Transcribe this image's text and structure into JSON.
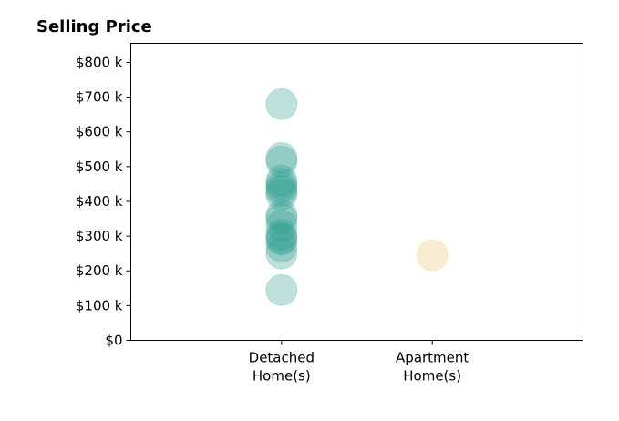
{
  "chart_data": {
    "type": "scatter",
    "title": "Selling Price",
    "xlabel": "",
    "ylabel": "",
    "categories": [
      "Detached\nHome(s)",
      "Apartment\nHome(s)"
    ],
    "yticks": [
      {
        "value": 0,
        "label": "$0"
      },
      {
        "value": 100,
        "label": "$100 k"
      },
      {
        "value": 200,
        "label": "$200 k"
      },
      {
        "value": 300,
        "label": "$300 k"
      },
      {
        "value": 400,
        "label": "$400 k"
      },
      {
        "value": 500,
        "label": "$500 k"
      },
      {
        "value": 600,
        "label": "$600 k"
      },
      {
        "value": 700,
        "label": "$700 k"
      },
      {
        "value": 800,
        "label": "$800 k"
      }
    ],
    "ylim": [
      0,
      855
    ],
    "xlim": [
      -1,
      2
    ],
    "grid": false,
    "series": [
      {
        "category_index": 0,
        "color": "#2a9d8f",
        "opacity": 0.3,
        "values": [
          145,
          250,
          270,
          290,
          295,
          305,
          330,
          350,
          360,
          420,
          430,
          440,
          450,
          460,
          515,
          525,
          680
        ]
      },
      {
        "category_index": 1,
        "color": "#e9c46a",
        "opacity": 0.3,
        "values": [
          245
        ]
      }
    ]
  }
}
